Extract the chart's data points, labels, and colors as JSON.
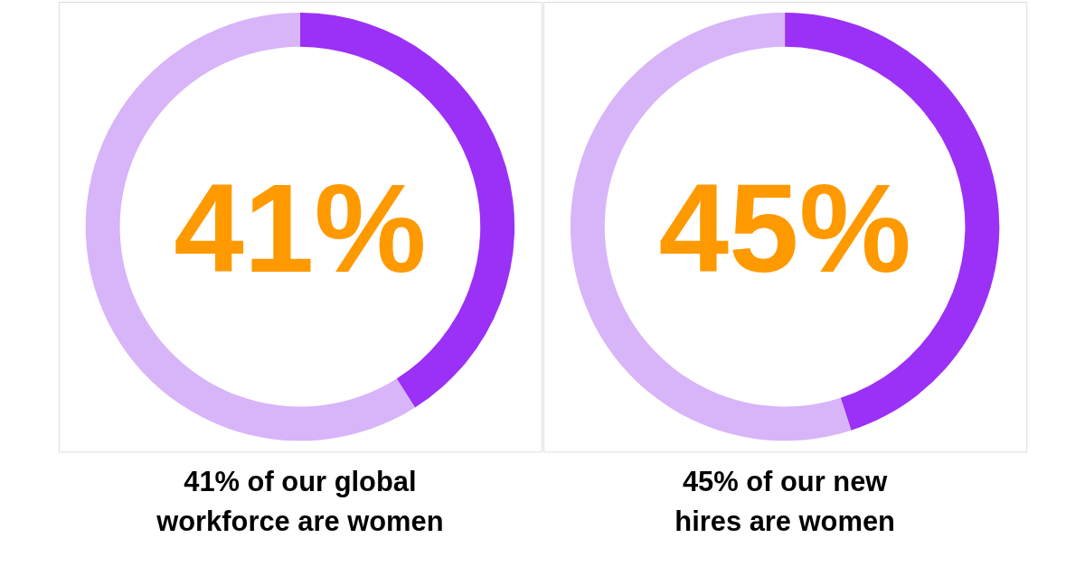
{
  "chart_data": [
    {
      "type": "donut",
      "title": "41% of our global workforce are women",
      "categories": [
        null,
        null
      ],
      "values": [
        41,
        59
      ],
      "colors": [
        "#9b30f6",
        "#d8b4f8"
      ],
      "annotations": [
        "41%"
      ]
    },
    {
      "type": "donut",
      "title": "45% of our new hires are women",
      "categories": [
        null,
        null
      ],
      "values": [
        45,
        55
      ],
      "colors": [
        "#9b30f6",
        "#d8b4f8"
      ],
      "annotations": [
        "45%"
      ]
    }
  ]
}
